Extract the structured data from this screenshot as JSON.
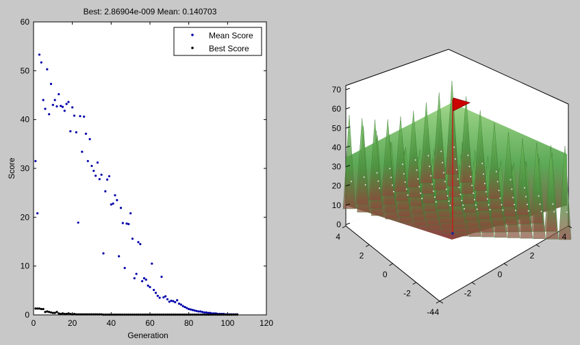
{
  "figure": {
    "background": "#c8c8c8",
    "title": "Best: 2.86904e-009 Mean: 0.140703"
  },
  "chart_data": [
    {
      "type": "scatter",
      "title": "Best: 2.86904e-009 Mean: 0.140703",
      "xlabel": "Generation",
      "ylabel": "Score",
      "xlim": [
        0,
        120
      ],
      "ylim": [
        0,
        60
      ],
      "xticks": [
        0,
        20,
        40,
        60,
        80,
        100,
        120
      ],
      "yticks": [
        0,
        10,
        20,
        30,
        40,
        50,
        60
      ],
      "legend": {
        "placement": "top-right",
        "entries": [
          "Mean Score",
          "Best Score"
        ]
      },
      "grid": false,
      "series": [
        {
          "name": "Mean Score",
          "color": "#0000aa",
          "x": [
            1,
            2,
            3,
            4,
            5,
            6,
            7,
            8,
            9,
            10,
            11,
            12,
            13,
            14,
            15,
            16,
            17,
            18,
            19,
            20,
            21,
            22,
            23,
            24,
            25,
            26,
            27,
            28,
            29,
            30,
            31,
            32,
            33,
            34,
            35,
            36,
            37,
            38,
            39,
            40,
            41,
            42,
            43,
            44,
            45,
            46,
            47,
            48,
            49,
            50,
            51,
            52,
            53,
            54,
            55,
            56,
            57,
            58,
            59,
            60,
            61,
            62,
            63,
            64,
            65,
            66,
            67,
            68,
            69,
            70,
            71,
            72,
            73,
            74,
            75,
            76,
            77,
            78,
            79,
            80,
            81,
            82,
            83,
            84,
            85,
            86,
            87,
            88,
            89,
            90,
            91,
            92,
            93,
            94,
            95,
            96,
            97,
            98,
            99,
            100,
            101,
            102,
            103,
            104,
            105
          ],
          "y": [
            31.5,
            20.8,
            53.3,
            51.7,
            44.0,
            42.2,
            50.3,
            41.1,
            47.3,
            43.0,
            44.0,
            42.7,
            45.2,
            42.8,
            42.6,
            41.8,
            43.2,
            43.6,
            37.6,
            42.5,
            40.8,
            37.4,
            18.9,
            40.7,
            33.4,
            40.6,
            37.1,
            31.5,
            36.0,
            30.5,
            29.5,
            28.5,
            31.2,
            27.8,
            28.7,
            12.6,
            25.3,
            27.7,
            28.4,
            22.6,
            22.8,
            24.5,
            23.5,
            12.0,
            21.9,
            18.8,
            9.6,
            18.7,
            18.6,
            20.8,
            15.6,
            7.5,
            8.4,
            14.9,
            14.5,
            6.9,
            7.5,
            7.2,
            6.0,
            5.7,
            10.5,
            5.1,
            4.5,
            3.9,
            3.5,
            7.8,
            3.6,
            3.8,
            3.2,
            2.7,
            2.9,
            2.8,
            2.6,
            3.0,
            2.3,
            2.1,
            1.8,
            1.6,
            1.4,
            1.2,
            1.1,
            1.0,
            0.9,
            0.8,
            0.7,
            0.7,
            0.6,
            0.5,
            0.5,
            0.4,
            0.4,
            0.3,
            0.3,
            0.3,
            0.2,
            0.2,
            0.2,
            0.2,
            0.1,
            0.1,
            0.1,
            0.1,
            0.1,
            0.1,
            0.1
          ]
        },
        {
          "name": "Best Score",
          "color": "#000000",
          "x": [
            1,
            2,
            3,
            4,
            5,
            6,
            7,
            8,
            9,
            10,
            11,
            12,
            13,
            14,
            15,
            16,
            17,
            18,
            19,
            20,
            21,
            22,
            23,
            24,
            25,
            26,
            27,
            28,
            29,
            30,
            31,
            32,
            33,
            34,
            35,
            36,
            37,
            38,
            39,
            40,
            41,
            42,
            43,
            44,
            45,
            46,
            47,
            48,
            49,
            50,
            51,
            52,
            53,
            54,
            55,
            56,
            57,
            58,
            59,
            60,
            61,
            62,
            63,
            64,
            65,
            66,
            67,
            68,
            69,
            70,
            71,
            72,
            73,
            74,
            75,
            76,
            77,
            78,
            79,
            80,
            81,
            82,
            83,
            84,
            85,
            86,
            87,
            88,
            89,
            90,
            91,
            92,
            93,
            94,
            95,
            96,
            97,
            98,
            99,
            100,
            101,
            102,
            103,
            104,
            105
          ],
          "y": [
            1.3,
            1.3,
            1.3,
            1.2,
            1.2,
            0.6,
            0.7,
            0.6,
            0.5,
            0.4,
            0.4,
            0.6,
            0.3,
            0.2,
            0.3,
            0.2,
            0.2,
            0.3,
            0.2,
            0.1,
            0.2,
            0.1,
            0.1,
            0.1,
            0.1,
            0.1,
            0.1,
            0.1,
            0.1,
            0.1,
            0.1,
            0.1,
            0.1,
            0.1,
            0.1,
            0.05,
            0.05,
            0.05,
            0.05,
            0.05,
            0.05,
            0.05,
            0.05,
            0.05,
            0.05,
            0.05,
            0.05,
            0.05,
            0.05,
            0.05,
            0.05,
            0.05,
            0.05,
            0.05,
            0.05,
            0.05,
            0.05,
            0.05,
            0.05,
            0.05,
            0.05,
            0.05,
            0.05,
            0.05,
            0.05,
            0.05,
            0.05,
            0.05,
            0.05,
            0.05,
            0.05,
            0.05,
            0.05,
            0.05,
            0.05,
            0.05,
            0.05,
            0.05,
            0.05,
            0.05,
            0.05,
            0.05,
            0.05,
            0.05,
            0.05,
            0.05,
            0.05,
            0.05,
            0.05,
            0.05,
            0.05,
            0.05,
            0.05,
            0.05,
            0.05,
            0.05,
            0.05,
            0.05,
            0.05,
            0.05,
            0.05,
            0.05,
            0.05,
            0.05,
            0.05
          ]
        }
      ]
    },
    {
      "type": "surface3d",
      "xlim": [
        -4,
        4
      ],
      "ylim": [
        -4,
        4
      ],
      "zlim": [
        0,
        70
      ],
      "xticks": [
        -4,
        -2,
        0,
        2,
        4
      ],
      "yticks": [
        -4,
        -2,
        0,
        2,
        4
      ],
      "zticks": [
        0,
        10,
        20,
        30,
        40,
        50,
        60,
        70
      ],
      "colors": {
        "surface_top": "#5ab04a",
        "surface_bottom": "#8b1e1e",
        "flag": "#cc0000"
      },
      "flag_marker": {
        "x": 0,
        "y": 0,
        "z": 60
      }
    }
  ]
}
